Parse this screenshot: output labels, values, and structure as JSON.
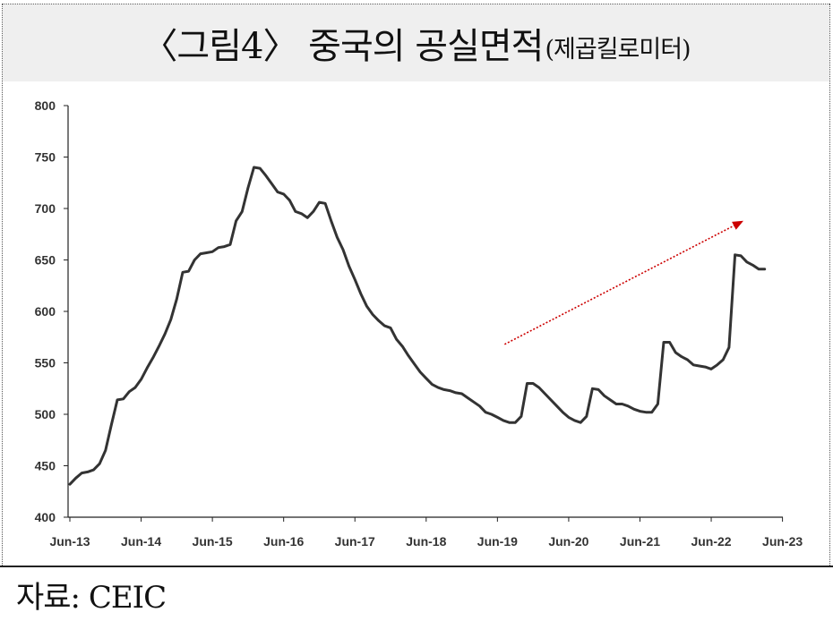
{
  "title": {
    "main": "〈그림4〉 중국의 공실면적",
    "sub": "(제곱킬로미터)"
  },
  "source": "자료: CEIC",
  "chart_data": {
    "type": "line",
    "title": "〈그림4〉 중국의 공실면적(제곱킬로미터)",
    "xlabel": "",
    "ylabel": "",
    "ylim": [
      400,
      800
    ],
    "yticks": [
      400,
      450,
      500,
      550,
      600,
      650,
      700,
      750,
      800
    ],
    "xtick_labels": [
      "Jun-13",
      "Jun-14",
      "Jun-15",
      "Jun-16",
      "Jun-17",
      "Jun-18",
      "Jun-19",
      "Jun-20",
      "Jun-21",
      "Jun-22",
      "Jun-23"
    ],
    "x_start": "Jun-13",
    "x_unit": "month",
    "grid": false,
    "line_color": "#333333",
    "series": [
      {
        "name": "",
        "values": [
          432,
          438,
          443,
          444,
          446,
          452,
          465,
          490,
          514,
          515,
          522,
          526,
          534,
          545,
          555,
          566,
          578,
          592,
          612,
          638,
          639,
          650,
          656,
          657,
          658,
          662,
          663,
          665,
          688,
          697,
          720,
          740,
          739,
          732,
          724,
          716,
          714,
          708,
          697,
          695,
          691,
          697,
          706,
          705,
          688,
          672,
          660,
          644,
          631,
          617,
          605,
          597,
          591,
          586,
          584,
          573,
          566,
          557,
          549,
          541,
          535,
          529,
          526,
          524,
          523,
          521,
          520,
          516,
          512,
          508,
          502,
          500,
          497,
          494,
          492,
          492,
          498,
          530,
          530,
          526,
          520,
          514,
          508,
          502,
          497,
          494,
          492,
          498,
          525,
          524,
          518,
          514,
          510,
          510,
          508,
          505,
          503,
          502,
          502,
          510,
          570,
          570,
          560,
          556,
          553,
          548,
          547,
          546,
          544,
          548,
          553,
          565,
          655,
          654,
          648,
          645,
          641,
          641
        ]
      }
    ],
    "annotations": [
      {
        "type": "arrow",
        "color": "#cc0000",
        "style": "dotted",
        "from_x": "Jun-19",
        "from_y": 568,
        "to_x": "Jun-22",
        "to_y": 688
      }
    ]
  }
}
